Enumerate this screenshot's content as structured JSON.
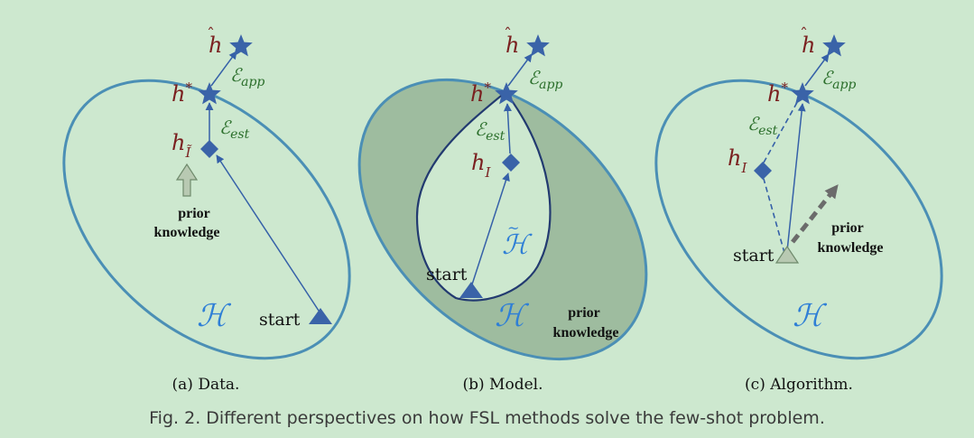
{
  "colors": {
    "background": "#cde8cf",
    "ellipse_stroke": "#4b8fb5",
    "shaded_region": "#9ebc9f",
    "arrow": "#3560a8",
    "marker": "#3a63a8",
    "h_labels": "#7a1f1f",
    "error_labels": "#2a6e2a",
    "hypothesis_space": "#2f7fd6"
  },
  "panels": [
    {
      "caption": "(a)  Data.",
      "h_hat": "h",
      "h_star": "h",
      "star_sup": "*",
      "h_mid": "h",
      "h_mid_sub": "Ĩ",
      "e_app": "ℰ",
      "e_app_sub": "app",
      "e_est": "ℰ",
      "e_est_sub": "est",
      "space": "ℋ",
      "start": "start",
      "prior_1": "prior",
      "prior_2": "knowledge"
    },
    {
      "caption": "(b)  Model.",
      "h_hat": "h",
      "h_star": "h",
      "star_sup": "*",
      "h_mid": "h",
      "h_mid_sub": "I",
      "e_app": "ℰ",
      "e_app_sub": "app",
      "e_est": "ℰ",
      "e_est_sub": "est",
      "space": "ℋ",
      "subspace": "ℋ",
      "start": "start",
      "prior_1": "prior",
      "prior_2": "knowledge"
    },
    {
      "caption": "(c)  Algorithm.",
      "h_hat": "h",
      "h_star": "h",
      "star_sup": "*",
      "h_mid": "h",
      "h_mid_sub": "I",
      "e_app": "ℰ",
      "e_app_sub": "app",
      "e_est": "ℰ",
      "e_est_sub": "est",
      "space": "ℋ",
      "start": "start",
      "prior_1": "prior",
      "prior_2": "knowledge"
    }
  ],
  "figure_caption": "Fig. 2.  Different perspectives on how FSL methods solve the few-shot problem."
}
